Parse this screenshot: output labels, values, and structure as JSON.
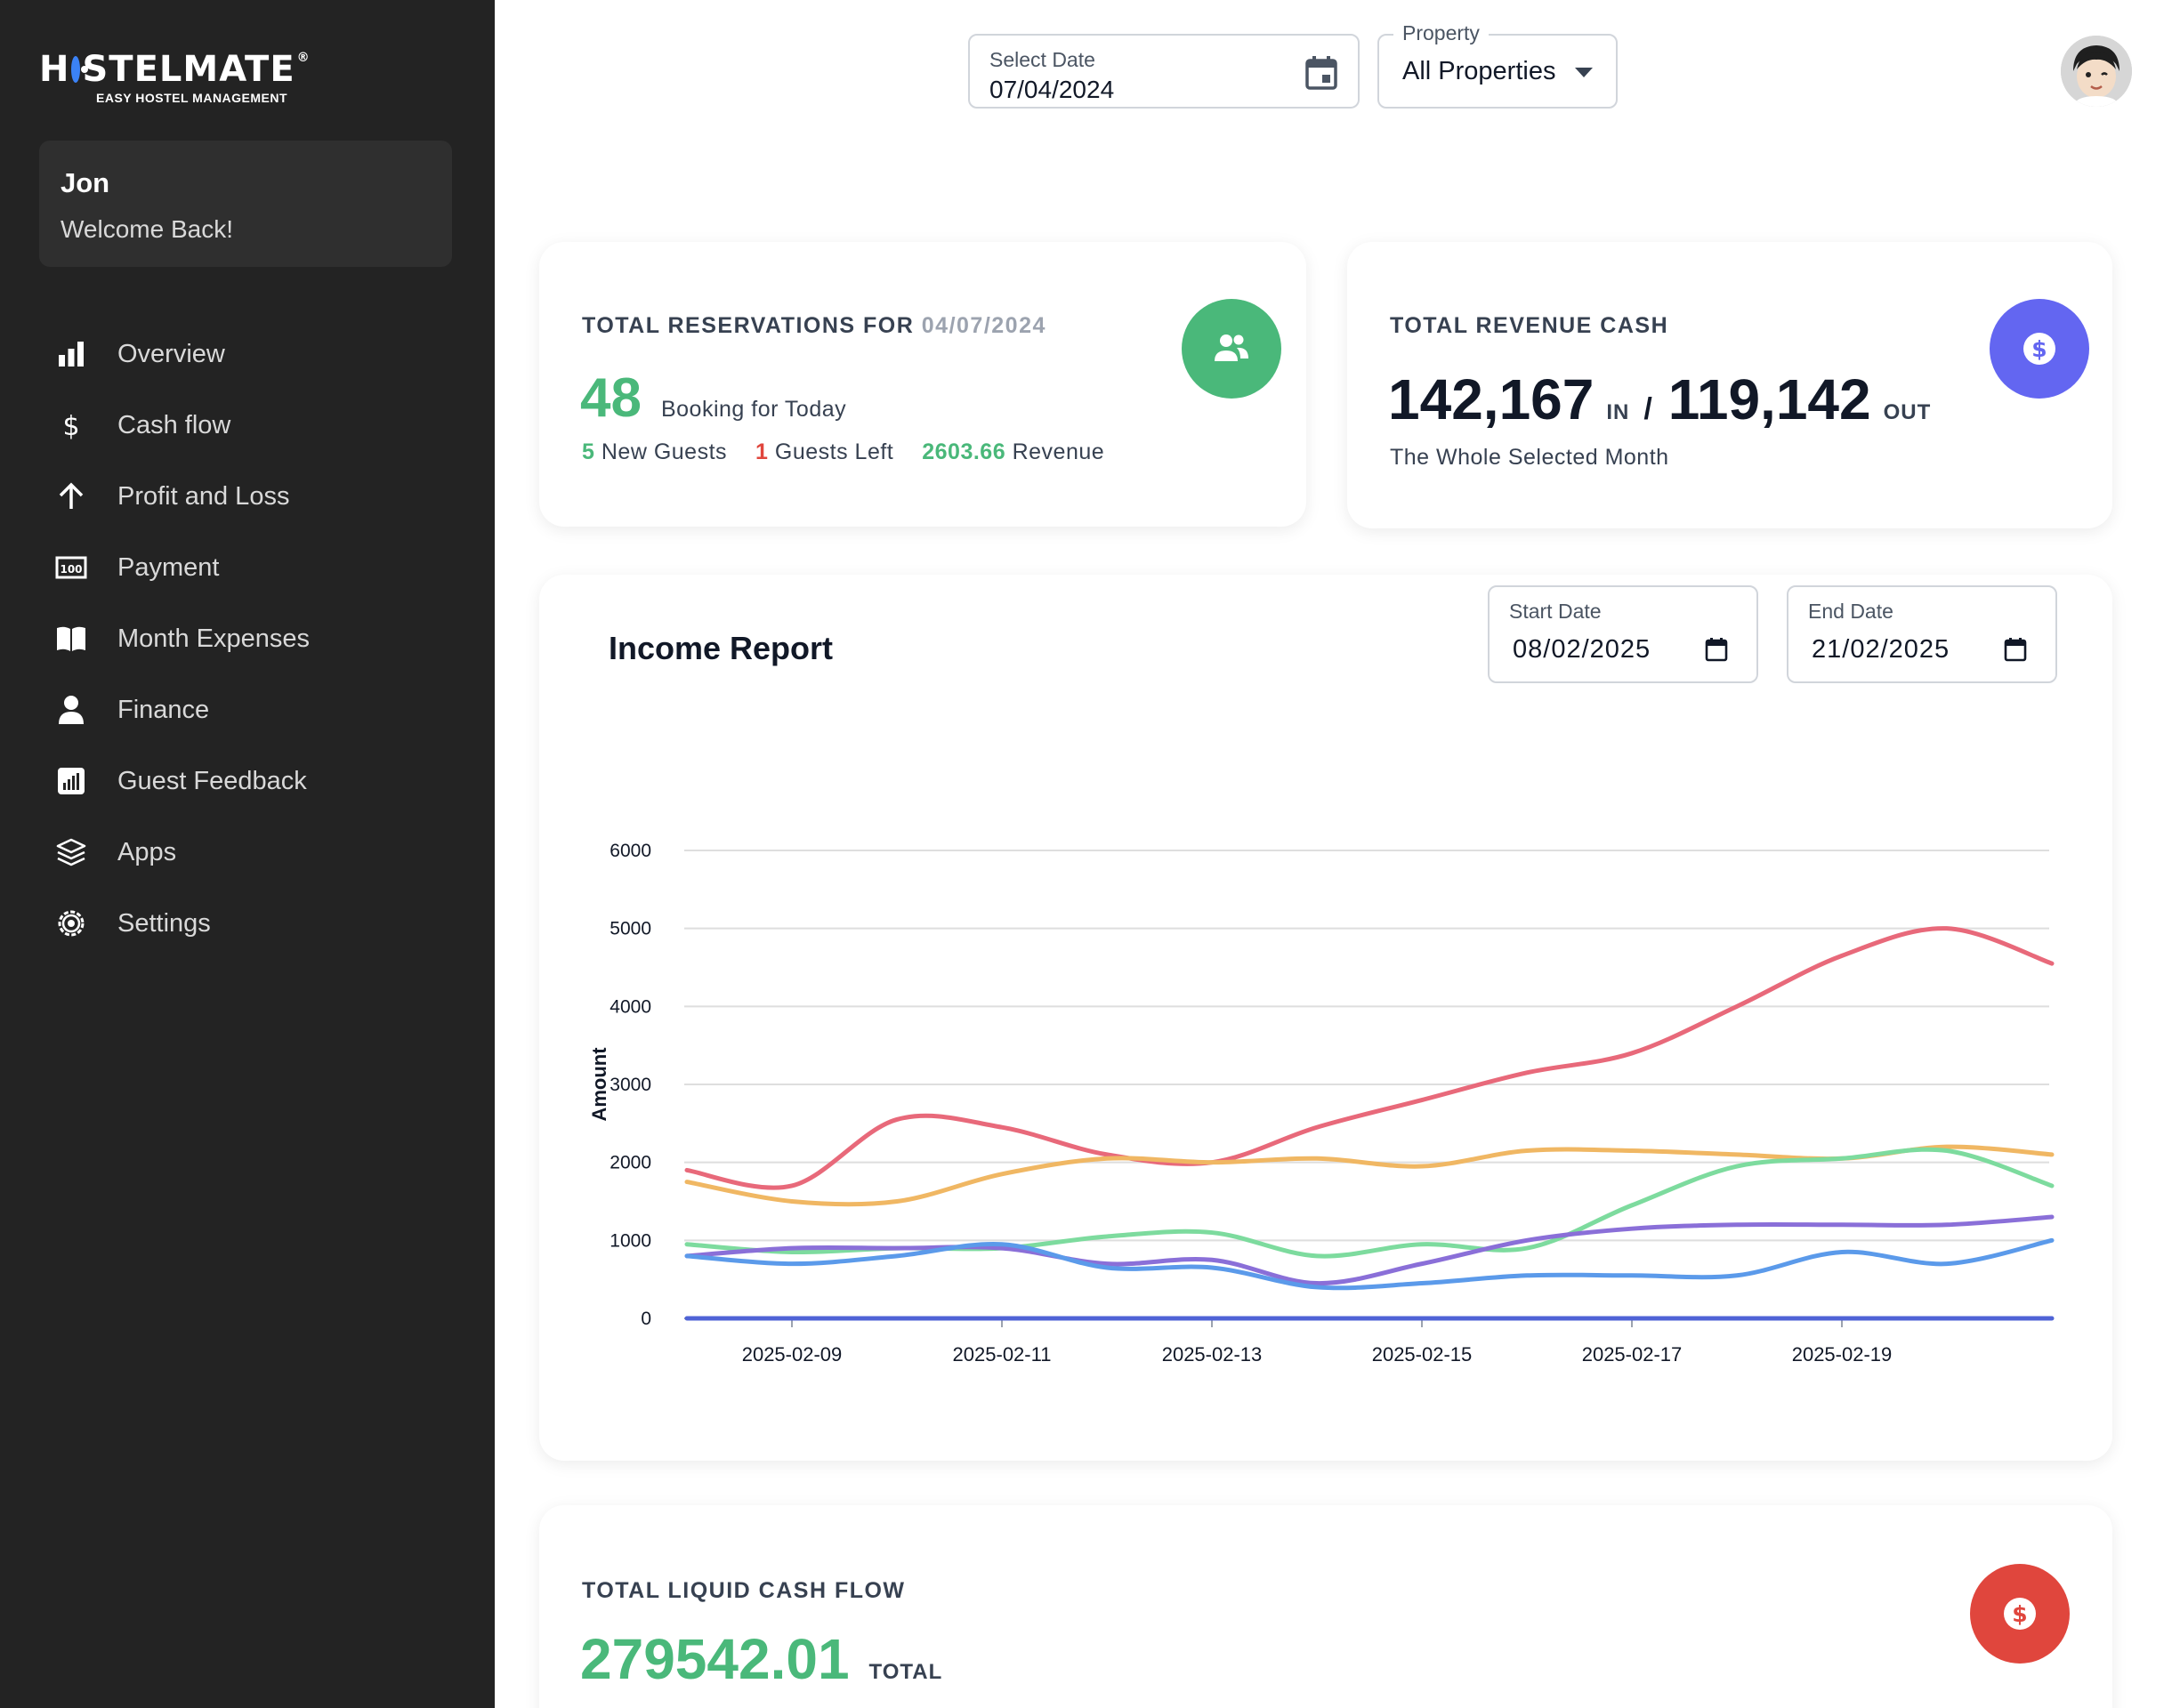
{
  "brand": {
    "name_left": "H",
    "name_right": "STELMATE",
    "registered": "®",
    "tagline": "EASY HOSTEL MANAGEMENT"
  },
  "user": {
    "name": "Jon",
    "greeting": "Welcome Back!"
  },
  "nav": {
    "items": [
      {
        "label": "Overview",
        "icon": "bar-chart-icon"
      },
      {
        "label": "Cash flow",
        "icon": "dollar-icon"
      },
      {
        "label": "Profit and Loss",
        "icon": "arrow-up-icon"
      },
      {
        "label": "Payment",
        "icon": "banknote-icon"
      },
      {
        "label": "Month Expenses",
        "icon": "book-icon"
      },
      {
        "label": "Finance",
        "icon": "person-icon"
      },
      {
        "label": "Guest Feedback",
        "icon": "feedback-chart-icon"
      },
      {
        "label": "Apps",
        "icon": "layers-icon"
      },
      {
        "label": "Settings",
        "icon": "gear-icon"
      }
    ]
  },
  "topbar": {
    "select_date_label": "Select Date",
    "select_date_value": "07/04/2024",
    "property_label": "Property",
    "property_value": "All Properties"
  },
  "reservations": {
    "title": "TOTAL RESERVATIONS FOR",
    "title_date": "04/07/2024",
    "count": "48",
    "count_label": "Booking for Today",
    "new_guests_count": "5",
    "new_guests_label": "New Guests",
    "guests_left_count": "1",
    "guests_left_label": "Guests Left",
    "revenue_value": "2603.66",
    "revenue_label": "Revenue",
    "icon_color": "#4ab87a"
  },
  "revenue": {
    "title": "TOTAL REVENUE CASH",
    "in_value": "142,167",
    "in_label": "IN",
    "separator": "/",
    "out_value": "119,142",
    "out_label": "OUT",
    "subtitle": "The Whole Selected Month",
    "icon_color": "#6366f1"
  },
  "income_report": {
    "title": "Income Report",
    "start_date_label": "Start Date",
    "start_date_value": "08/02/2025",
    "end_date_label": "End Date",
    "end_date_value": "21/02/2025"
  },
  "liquid": {
    "title": "TOTAL LIQUID CASH FLOW",
    "value": "279542.01",
    "unit": "TOTAL",
    "icon_color": "#e0463d"
  },
  "chart_data": {
    "type": "line",
    "ylabel": "Amount",
    "xlabel": "",
    "ylim": [
      0,
      6000
    ],
    "yticks": [
      "0",
      "1000",
      "2000",
      "3000",
      "4000",
      "5000",
      "6000"
    ],
    "x": [
      "2025-02-08",
      "2025-02-09",
      "2025-02-10",
      "2025-02-11",
      "2025-02-12",
      "2025-02-13",
      "2025-02-14",
      "2025-02-15",
      "2025-02-16",
      "2025-02-17",
      "2025-02-18",
      "2025-02-19",
      "2025-02-20",
      "2025-02-21"
    ],
    "xtick_labels": [
      "2025-02-09",
      "2025-02-11",
      "2025-02-13",
      "2025-02-15",
      "2025-02-17",
      "2025-02-19"
    ],
    "grid": true,
    "series": [
      {
        "color": "#e8697a",
        "values": [
          1900,
          1700,
          2550,
          2450,
          2100,
          2000,
          2450,
          2800,
          3150,
          3400,
          4000,
          4650,
          5000,
          4550
        ]
      },
      {
        "color": "#f0b763",
        "values": [
          1750,
          1500,
          1500,
          1850,
          2050,
          2000,
          2050,
          1950,
          2150,
          2150,
          2100,
          2050,
          2200,
          2100
        ]
      },
      {
        "color": "#7ddb9e",
        "values": [
          950,
          850,
          900,
          900,
          1050,
          1100,
          800,
          950,
          900,
          1450,
          1950,
          2050,
          2150,
          1700
        ]
      },
      {
        "color": "#8a6fd8",
        "values": [
          800,
          900,
          900,
          900,
          700,
          750,
          450,
          700,
          1000,
          1150,
          1200,
          1200,
          1200,
          1300
        ]
      },
      {
        "color": "#5b9aea",
        "values": [
          800,
          700,
          800,
          950,
          650,
          650,
          400,
          450,
          550,
          550,
          550,
          850,
          700,
          1000
        ]
      },
      {
        "color": "#4f63d6",
        "values": [
          0,
          0,
          0,
          0,
          0,
          0,
          0,
          0,
          0,
          0,
          0,
          0,
          0,
          0
        ]
      }
    ]
  }
}
